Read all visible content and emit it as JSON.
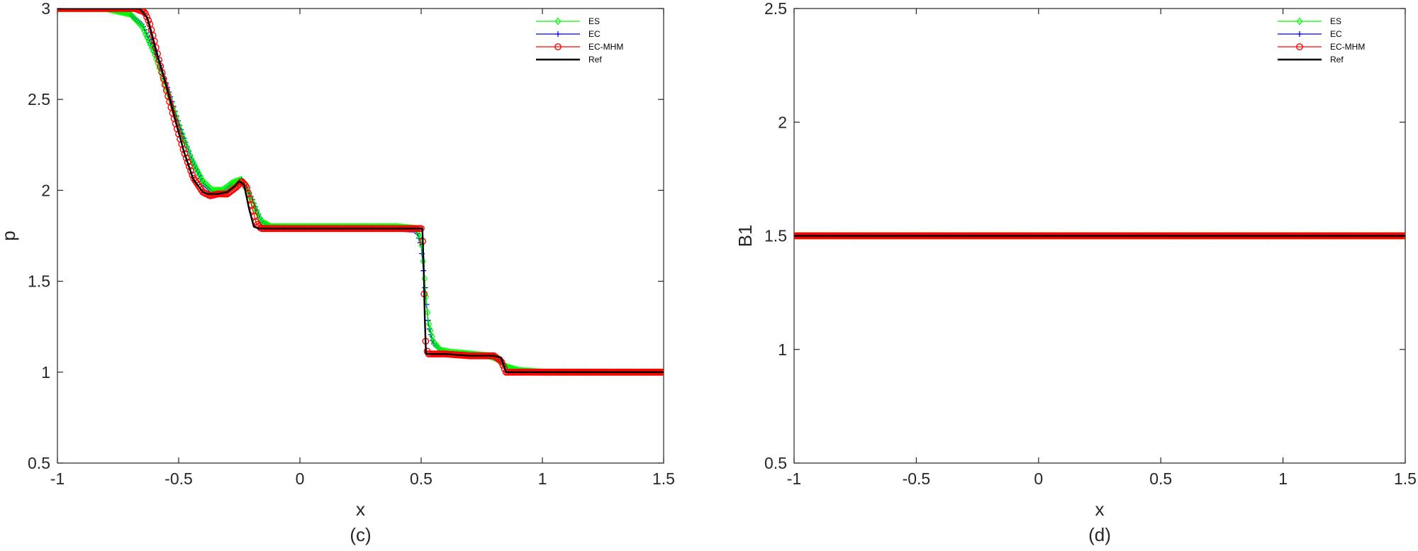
{
  "chart_data": [
    {
      "type": "line",
      "caption": "(c)",
      "xlabel": "x",
      "ylabel": "p",
      "xlim": [
        -1,
        1.5
      ],
      "ylim": [
        0.5,
        3
      ],
      "xticks": [
        -1,
        -0.5,
        0,
        0.5,
        1,
        1.5
      ],
      "yticks": [
        0.5,
        1,
        1.5,
        2,
        2.5,
        3
      ],
      "xtick_labels": [
        "-1",
        "-0.5",
        "0",
        "0.5",
        "1",
        "1.5"
      ],
      "ytick_labels": [
        "0.5",
        "1",
        "1.5",
        "2",
        "2.5",
        "3"
      ],
      "legend_position": "top-right",
      "series": [
        {
          "name": "ES",
          "color": "#00ff00",
          "marker": "diamond",
          "x": [
            -1,
            -0.8,
            -0.7,
            -0.65,
            -0.6,
            -0.55,
            -0.5,
            -0.45,
            -0.4,
            -0.36,
            -0.32,
            -0.28,
            -0.24,
            -0.2,
            -0.16,
            -0.12,
            0,
            0.2,
            0.4,
            0.48,
            0.5,
            0.51,
            0.52,
            0.53,
            0.55,
            0.58,
            0.62,
            0.7,
            0.78,
            0.82,
            0.85,
            0.9,
            1,
            1.2,
            1.5
          ],
          "y": [
            3,
            3,
            2.97,
            2.9,
            2.75,
            2.56,
            2.36,
            2.18,
            2.05,
            2.0,
            2.0,
            2.04,
            2.06,
            1.95,
            1.83,
            1.8,
            1.8,
            1.8,
            1.8,
            1.79,
            1.72,
            1.58,
            1.42,
            1.28,
            1.17,
            1.12,
            1.11,
            1.1,
            1.09,
            1.07,
            1.03,
            1.01,
            1.0,
            1.0,
            1.0
          ]
        },
        {
          "name": "EC",
          "color": "#0000ff",
          "marker": "plus",
          "x": [
            -1,
            -0.8,
            -0.7,
            -0.65,
            -0.6,
            -0.55,
            -0.5,
            -0.45,
            -0.4,
            -0.36,
            -0.32,
            -0.28,
            -0.24,
            -0.2,
            -0.16,
            -0.12,
            0,
            0.2,
            0.4,
            0.48,
            0.5,
            0.51,
            0.52,
            0.53,
            0.55,
            0.58,
            0.62,
            0.7,
            0.78,
            0.82,
            0.85,
            0.9,
            1,
            1.2,
            1.5
          ],
          "y": [
            3,
            3,
            2.97,
            2.91,
            2.77,
            2.58,
            2.37,
            2.18,
            2.04,
            1.99,
            1.99,
            2.03,
            2.06,
            1.96,
            1.83,
            1.8,
            1.79,
            1.79,
            1.79,
            1.78,
            1.7,
            1.55,
            1.4,
            1.26,
            1.16,
            1.12,
            1.1,
            1.1,
            1.09,
            1.07,
            1.03,
            1.01,
            1.0,
            1.0,
            1.0
          ]
        },
        {
          "name": "EC-MHM",
          "color": "#ff0000",
          "marker": "circle",
          "x": [
            -1,
            -0.75,
            -0.68,
            -0.64,
            -0.62,
            -0.6,
            -0.56,
            -0.52,
            -0.48,
            -0.44,
            -0.4,
            -0.37,
            -0.34,
            -0.3,
            -0.26,
            -0.24,
            -0.22,
            -0.2,
            -0.18,
            -0.16,
            0,
            0.2,
            0.4,
            0.48,
            0.5,
            0.505,
            0.51,
            0.515,
            0.52,
            0.53,
            0.6,
            0.7,
            0.8,
            0.83,
            0.85,
            1,
            1.2,
            1.5
          ],
          "y": [
            3,
            3,
            3,
            2.98,
            2.92,
            2.82,
            2.6,
            2.4,
            2.22,
            2.07,
            1.99,
            1.97,
            1.98,
            1.98,
            2.02,
            2.05,
            2.02,
            1.92,
            1.82,
            1.79,
            1.79,
            1.79,
            1.79,
            1.79,
            1.79,
            1.77,
            1.57,
            1.29,
            1.13,
            1.1,
            1.1,
            1.09,
            1.09,
            1.06,
            1.0,
            1.0,
            1.0,
            1.0
          ]
        },
        {
          "name": "Ref",
          "color": "#000000",
          "marker": "none",
          "x": [
            -1,
            -0.66,
            -0.63,
            -0.6,
            -0.56,
            -0.52,
            -0.48,
            -0.44,
            -0.4,
            -0.38,
            -0.36,
            -0.34,
            -0.3,
            -0.27,
            -0.25,
            -0.23,
            -0.21,
            -0.19,
            -0.17,
            0,
            0.2,
            0.4,
            0.5,
            0.505,
            0.51,
            0.515,
            0.52,
            0.6,
            0.7,
            0.8,
            0.83,
            0.84,
            0.85,
            1,
            1.2,
            1.5
          ],
          "y": [
            3,
            3,
            2.95,
            2.8,
            2.62,
            2.42,
            2.22,
            2.06,
            1.99,
            1.98,
            1.98,
            1.98,
            1.99,
            2.02,
            2.05,
            2.03,
            1.9,
            1.8,
            1.79,
            1.79,
            1.79,
            1.79,
            1.79,
            1.79,
            1.6,
            1.3,
            1.1,
            1.1,
            1.09,
            1.09,
            1.08,
            1.04,
            1.0,
            1.0,
            1.0,
            1.0
          ]
        }
      ]
    },
    {
      "type": "line",
      "caption": "(d)",
      "xlabel": "x",
      "ylabel": "B1",
      "xlim": [
        -1,
        1.5
      ],
      "ylim": [
        0.5,
        2.5
      ],
      "xticks": [
        -1,
        -0.5,
        0,
        0.5,
        1,
        1.5
      ],
      "yticks": [
        0.5,
        1,
        1.5,
        2,
        2.5
      ],
      "xtick_labels": [
        "-1",
        "-0.5",
        "0",
        "0.5",
        "1",
        "1.5"
      ],
      "ytick_labels": [
        "0.5",
        "1",
        "1.5",
        "2",
        "2.5"
      ],
      "legend_position": "top-right",
      "series": [
        {
          "name": "ES",
          "color": "#00ff00",
          "marker": "diamond",
          "x": [
            -1,
            1.5
          ],
          "y": [
            1.5,
            1.5
          ]
        },
        {
          "name": "EC",
          "color": "#0000ff",
          "marker": "plus",
          "x": [
            -1,
            1.5
          ],
          "y": [
            1.5,
            1.5
          ]
        },
        {
          "name": "EC-MHM",
          "color": "#ff0000",
          "marker": "circle",
          "x": [
            -1,
            1.5
          ],
          "y": [
            1.5,
            1.5
          ]
        },
        {
          "name": "Ref",
          "color": "#000000",
          "marker": "none",
          "x": [
            -1,
            1.5
          ],
          "y": [
            1.5,
            1.5
          ]
        }
      ]
    }
  ]
}
